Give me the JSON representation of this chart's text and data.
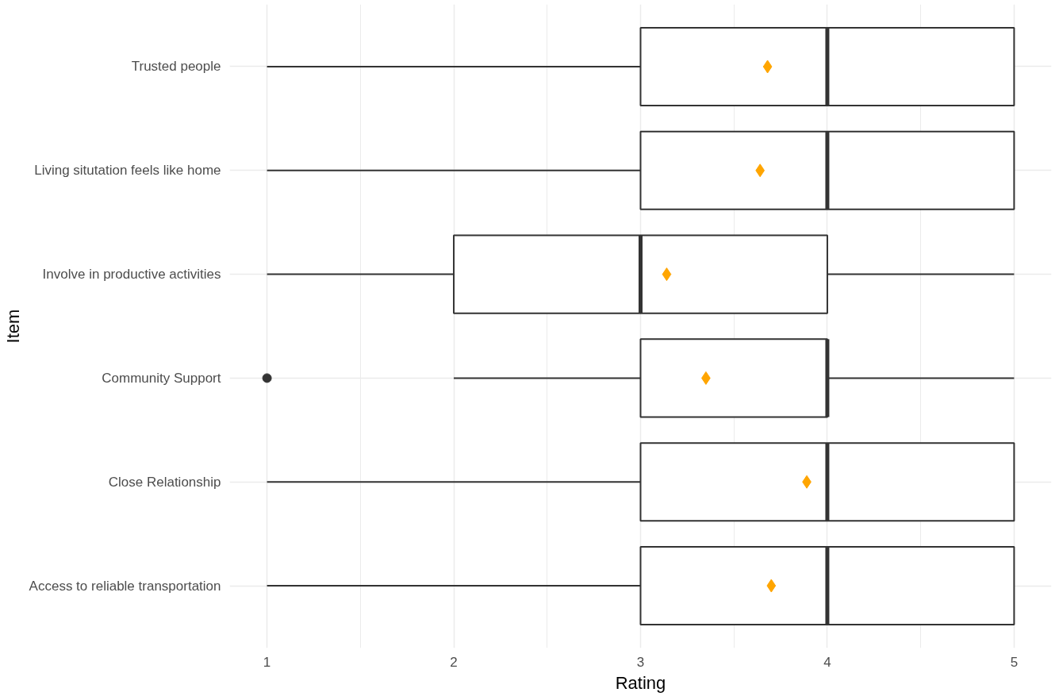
{
  "chart_data": {
    "type": "box",
    "orientation": "horizontal",
    "xlabel": "Rating",
    "ylabel": "Item",
    "categories": [
      "Trusted people",
      "Living situtation feels like home",
      "Involve in productive activities",
      "Community Support",
      "Close Relationship",
      "Access to reliable transportation"
    ],
    "xlim": [
      0.8,
      5.2
    ],
    "xticks": [
      1,
      2,
      3,
      4,
      5
    ],
    "grid": true,
    "series": [
      {
        "color": "#333333",
        "boxes": [
          {
            "low": 1,
            "q1": 3,
            "median": 4,
            "q3": 5,
            "high": 5
          },
          {
            "low": 1,
            "q1": 3,
            "median": 4,
            "q3": 5,
            "high": 5
          },
          {
            "low": 1,
            "q1": 2,
            "median": 3,
            "q3": 4,
            "high": 5
          },
          {
            "low": 2,
            "q1": 3,
            "median": 4,
            "q3": 4,
            "high": 5,
            "outliers": [
              1
            ]
          },
          {
            "low": 1,
            "q1": 3,
            "median": 4,
            "q3": 5,
            "high": 5
          },
          {
            "low": 1,
            "q1": 3,
            "median": 4,
            "q3": 5,
            "high": 5
          }
        ]
      },
      {
        "type": "scatter",
        "color": "#ffa500",
        "marker": "diamond",
        "values": [
          3.68,
          3.64,
          3.14,
          3.35,
          3.89,
          3.7
        ]
      }
    ]
  }
}
